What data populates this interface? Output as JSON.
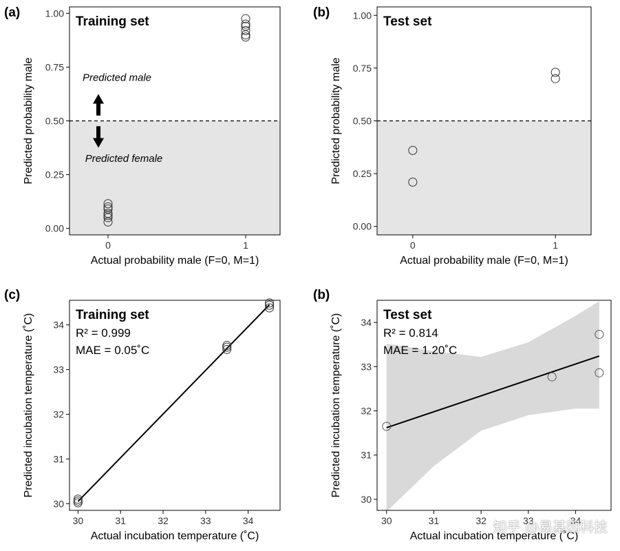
{
  "colors": {
    "shade": "#e5e5e5",
    "axis": "#000000",
    "band": "#d9d9d9"
  },
  "chart_data": [
    {
      "panel": "(a)",
      "type": "scatter",
      "title": "Training set",
      "xlabel": "Actual probability male (F=0, M=1)",
      "ylabel": "Predicted probability male",
      "xlim": [
        -0.28,
        1.25
      ],
      "ylim": [
        -0.03,
        1.03
      ],
      "x_ticks": [
        0,
        1
      ],
      "y_ticks": [
        0.0,
        0.25,
        0.5,
        0.75,
        1.0
      ],
      "y_tick_labels": [
        "0.00",
        "0.25",
        "0.50",
        "0.75",
        "1.00"
      ],
      "threshold": 0.5,
      "shade_below_threshold": true,
      "annotations": [
        "Predicted male",
        "Predicted female"
      ],
      "points": [
        {
          "x": 0,
          "y": 0.03
        },
        {
          "x": 0,
          "y": 0.05
        },
        {
          "x": 0,
          "y": 0.06
        },
        {
          "x": 0,
          "y": 0.07
        },
        {
          "x": 0,
          "y": 0.09
        },
        {
          "x": 0,
          "y": 0.1
        },
        {
          "x": 0,
          "y": 0.115
        },
        {
          "x": 1,
          "y": 0.89
        },
        {
          "x": 1,
          "y": 0.9
        },
        {
          "x": 1,
          "y": 0.92
        },
        {
          "x": 1,
          "y": 0.94
        },
        {
          "x": 1,
          "y": 0.95
        },
        {
          "x": 1,
          "y": 0.975
        }
      ]
    },
    {
      "panel": "(b)",
      "type": "scatter",
      "title": "Test set",
      "xlabel": "Actual probability male (F=0, M=1)",
      "ylabel": "Predicted probability male",
      "xlim": [
        -0.25,
        1.25
      ],
      "ylim": [
        -0.04,
        1.04
      ],
      "x_ticks": [
        0,
        1
      ],
      "y_ticks": [
        0.0,
        0.25,
        0.5,
        0.75,
        1.0
      ],
      "y_tick_labels": [
        "0.00",
        "0.25",
        "0.50",
        "0.75",
        "1.00"
      ],
      "threshold": 0.5,
      "shade_below_threshold": true,
      "points": [
        {
          "x": 0,
          "y": 0.21
        },
        {
          "x": 0,
          "y": 0.36
        },
        {
          "x": 1,
          "y": 0.7
        },
        {
          "x": 1,
          "y": 0.73
        }
      ]
    },
    {
      "panel": "(c)",
      "type": "scatter",
      "title": "Training set",
      "stats": [
        "R² = 0.999",
        "MAE = 0.05˚C"
      ],
      "xlabel": "Actual incubation temperature (˚C)",
      "ylabel": "Predicted incubation temperature (˚C)",
      "xlim": [
        29.8,
        34.75
      ],
      "ylim": [
        29.85,
        34.55
      ],
      "x_ticks": [
        30,
        31,
        32,
        33,
        34
      ],
      "y_ticks": [
        30,
        31,
        32,
        33,
        34
      ],
      "fit_line": {
        "x": [
          30,
          34.5
        ],
        "y": [
          30.05,
          34.45
        ]
      },
      "points": [
        {
          "x": 30,
          "y": 30.02
        },
        {
          "x": 30,
          "y": 30.06
        },
        {
          "x": 30,
          "y": 30.1
        },
        {
          "x": 33.5,
          "y": 33.45
        },
        {
          "x": 33.5,
          "y": 33.5
        },
        {
          "x": 33.5,
          "y": 33.54
        },
        {
          "x": 34.5,
          "y": 34.38
        },
        {
          "x": 34.5,
          "y": 34.44
        },
        {
          "x": 34.5,
          "y": 34.49
        }
      ]
    },
    {
      "panel": "(b)",
      "type": "scatter",
      "title": "Test set",
      "stats": [
        "R² = 0.814",
        "MAE = 1.20˚C"
      ],
      "xlabel": "Actual incubation temperature (˚C)",
      "ylabel": "Predicted incubation temperature (˚C)",
      "xlim": [
        29.8,
        34.75
      ],
      "ylim": [
        29.75,
        34.5
      ],
      "x_ticks": [
        30,
        31,
        32,
        33,
        34
      ],
      "y_ticks": [
        30,
        31,
        32,
        33,
        34
      ],
      "fit_line": {
        "x": [
          30,
          34.5
        ],
        "y": [
          31.62,
          33.24
        ]
      },
      "confidence_band": {
        "x": [
          30,
          31,
          32,
          33,
          34,
          34.5
        ],
        "lower": [
          29.72,
          30.75,
          31.55,
          31.9,
          32.05,
          32.05
        ],
        "upper": [
          33.52,
          33.35,
          33.22,
          33.55,
          34.15,
          34.48
        ]
      },
      "points": [
        {
          "x": 30,
          "y": 31.65
        },
        {
          "x": 33.5,
          "y": 32.77
        },
        {
          "x": 34.5,
          "y": 32.86
        },
        {
          "x": 34.5,
          "y": 33.73
        }
      ]
    }
  ],
  "watermark": "知乎 @易基因科技"
}
